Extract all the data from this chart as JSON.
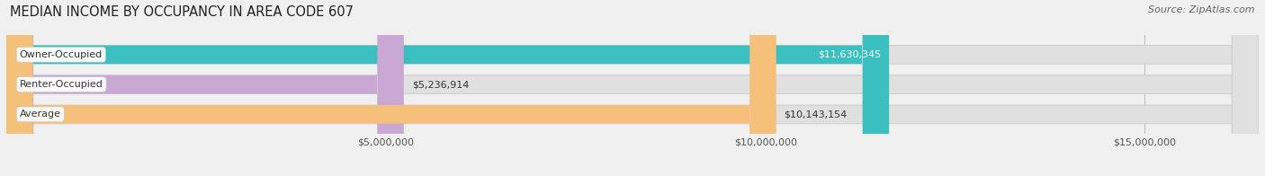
{
  "title": "MEDIAN INCOME BY OCCUPANCY IN AREA CODE 607",
  "source": "Source: ZipAtlas.com",
  "categories": [
    "Owner-Occupied",
    "Renter-Occupied",
    "Average"
  ],
  "values": [
    11630345,
    5236914,
    10143154
  ],
  "labels": [
    "$11,630,345",
    "$5,236,914",
    "$10,143,154"
  ],
  "bar_colors": [
    "#3bbfbf",
    "#c9a8d4",
    "#f5c07a"
  ],
  "label_text_colors": [
    "#ffffff",
    "#333333",
    "#333333"
  ],
  "label_inside": [
    true,
    false,
    false
  ],
  "background_color": "#f0f0f0",
  "bar_bg_color": "#e0e0e0",
  "bar_bg_edge_color": "#d0d0d0",
  "xlim": [
    0,
    16500000
  ],
  "xtick_vals": [
    5000000,
    10000000,
    15000000
  ],
  "xtick_labels": [
    "$5,000,000",
    "$10,000,000",
    "$15,000,000"
  ],
  "bar_height": 0.62,
  "bar_rounding": 350000,
  "title_fontsize": 10.5,
  "source_fontsize": 8,
  "label_fontsize": 8,
  "category_fontsize": 8,
  "tick_fontsize": 8
}
